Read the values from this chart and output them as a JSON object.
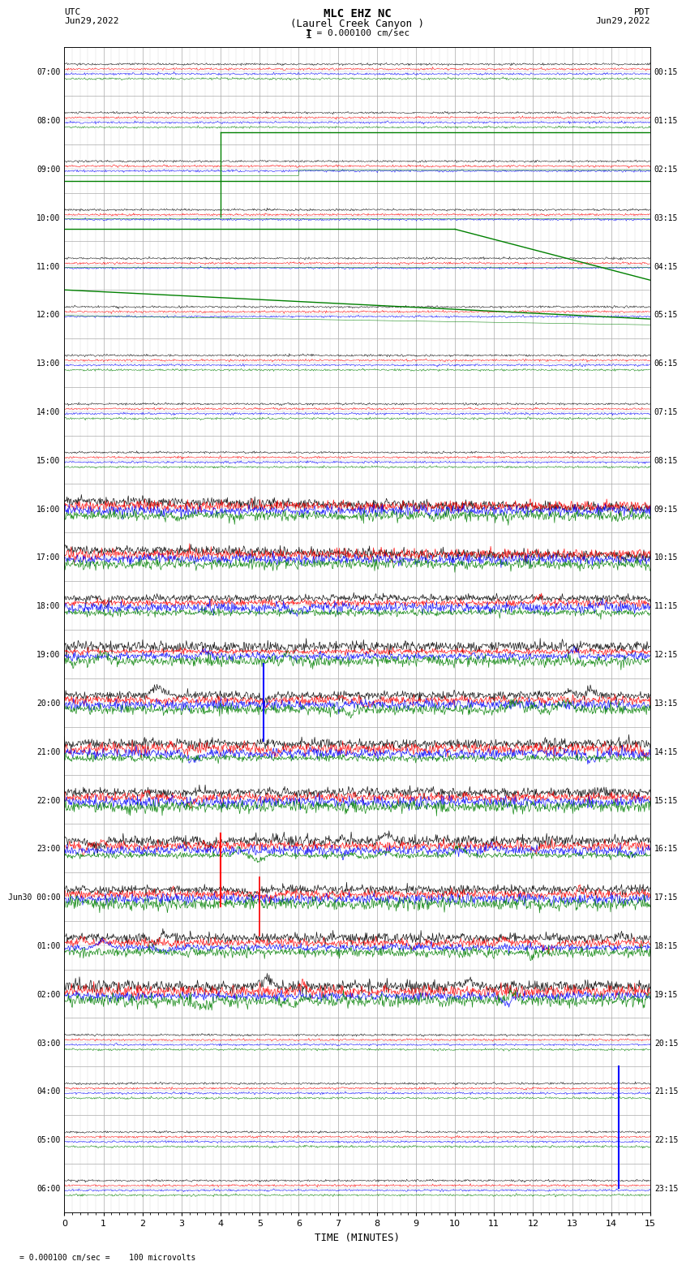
{
  "title_line1": "MLC EHZ NC",
  "title_line2": "(Laurel Creek Canyon )",
  "scale_label": "I = 0.000100 cm/sec",
  "left_label_top": "UTC",
  "left_label_date": "Jun29,2022",
  "right_label_top": "PDT",
  "right_label_date": "Jun29,2022",
  "bottom_label": "TIME (MINUTES)",
  "bottom_note": "= 0.000100 cm/sec =    100 microvolts",
  "utc_times": [
    "07:00",
    "08:00",
    "09:00",
    "10:00",
    "11:00",
    "12:00",
    "13:00",
    "14:00",
    "15:00",
    "16:00",
    "17:00",
    "18:00",
    "19:00",
    "20:00",
    "21:00",
    "22:00",
    "23:00",
    "Jun30 00:00",
    "01:00",
    "02:00",
    "03:00",
    "04:00",
    "05:00",
    "06:00"
  ],
  "pdt_times": [
    "00:15",
    "01:15",
    "02:15",
    "03:15",
    "04:15",
    "05:15",
    "06:15",
    "07:15",
    "08:15",
    "09:15",
    "10:15",
    "11:15",
    "12:15",
    "13:15",
    "14:15",
    "15:15",
    "16:15",
    "17:15",
    "18:15",
    "19:15",
    "20:15",
    "21:15",
    "22:15",
    "23:15"
  ],
  "x_ticks": [
    0,
    1,
    2,
    3,
    4,
    5,
    6,
    7,
    8,
    9,
    10,
    11,
    12,
    13,
    14,
    15
  ],
  "background_color": "#ffffff",
  "grid_color": "#aaaaaa",
  "trace_colors": [
    "black",
    "red",
    "blue",
    "green"
  ],
  "fig_width": 8.5,
  "fig_height": 16.13
}
